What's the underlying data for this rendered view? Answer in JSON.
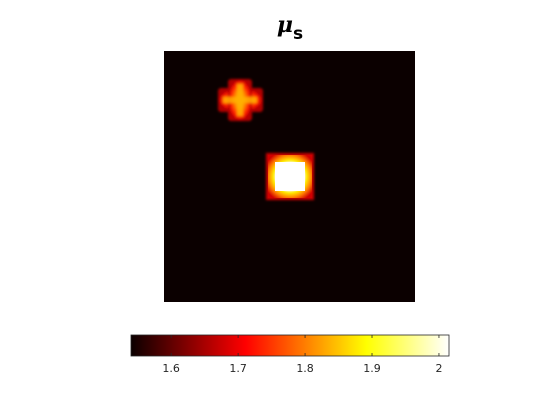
{
  "chart_data": {
    "type": "heatmap",
    "title": {
      "symbol": "μ",
      "subscript": "s"
    },
    "colormap": "hot",
    "color_limits": [
      1.54,
      2.015
    ],
    "background_value": 1.54,
    "colorbar": {
      "orientation": "horizontal",
      "location": "below",
      "ticks": [
        1.6,
        1.7,
        1.8,
        1.9,
        2.0
      ],
      "tick_labels": [
        "1.6",
        "1.7",
        "1.8",
        "1.9",
        "2"
      ]
    },
    "inclusions": [
      {
        "shape": "cross",
        "peak_value": 1.8,
        "edge_value": 1.7
      },
      {
        "shape": "square",
        "peak_value": 2.0,
        "edge_value": 1.72
      }
    ]
  }
}
